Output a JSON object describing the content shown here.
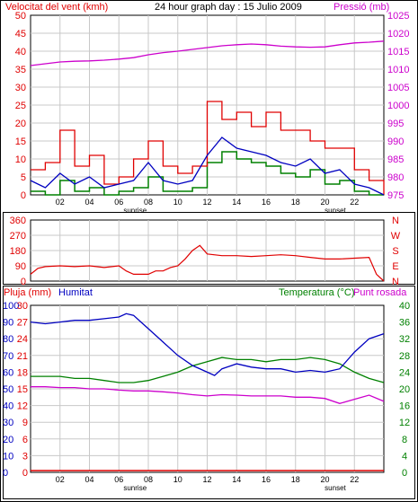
{
  "chart_data": [
    {
      "type": "line",
      "title": "24 hour graph day : 15 Julio 2009",
      "ylabel": "Velocitat del vent (kmh)",
      "y2label": "Pressió (mb)",
      "ylim": [
        0,
        50
      ],
      "y2lim": [
        975,
        1025
      ],
      "yticks": [
        "0",
        "5",
        "10",
        "15",
        "20",
        "25",
        "30",
        "35",
        "40",
        "45",
        "50"
      ],
      "y2ticks": [
        "975",
        "980",
        "985",
        "990",
        "995",
        "1000",
        "1005",
        "1010",
        "1015",
        "1020",
        "1025"
      ],
      "xticks": [
        "02",
        "04",
        "06",
        "08",
        "10",
        "12",
        "14",
        "16",
        "18",
        "20",
        "22"
      ],
      "x_range": [
        0,
        24
      ],
      "sunrise": 7.1,
      "sunset": 20.7,
      "sunrise_label": "sunrise",
      "sunset_label": "sunset",
      "grid": true,
      "colors": {
        "gust": "#e00000",
        "wind": "#0000c0",
        "avg": "#008000",
        "pressure": "#cc00cc",
        "axis_left": "#e00000",
        "axis_right": "#cc00cc",
        "grid": "#c0c0c0"
      },
      "series": [
        {
          "key": "pressure",
          "axis": "right",
          "x": [
            0,
            1,
            2,
            3,
            4,
            5,
            6,
            7,
            8,
            9,
            10,
            11,
            12,
            13,
            14,
            15,
            16,
            17,
            18,
            19,
            20,
            21,
            22,
            23,
            24
          ],
          "values": [
            1011,
            1011.5,
            1012,
            1012.2,
            1012.3,
            1012.5,
            1012.8,
            1013.2,
            1014,
            1014.6,
            1015,
            1015.5,
            1016,
            1016.5,
            1016.8,
            1017,
            1016.8,
            1016.4,
            1016.2,
            1016.1,
            1016.2,
            1016.8,
            1017.3,
            1017.5,
            1017.8
          ]
        },
        {
          "key": "gust",
          "axis": "left",
          "x": [
            0,
            1,
            2,
            3,
            4,
            5,
            6,
            7,
            8,
            9,
            10,
            11,
            12,
            13,
            14,
            15,
            16,
            17,
            18,
            19,
            20,
            21,
            22,
            23,
            24
          ],
          "values": [
            7,
            9,
            18,
            8,
            11,
            3,
            5,
            10,
            15,
            8,
            6,
            8,
            26,
            21,
            23,
            19,
            23,
            18,
            18,
            15,
            13,
            13,
            7,
            4,
            0
          ]
        },
        {
          "key": "wind",
          "axis": "left",
          "x": [
            0,
            1,
            2,
            3,
            4,
            5,
            6,
            7,
            8,
            9,
            10,
            11,
            12,
            13,
            14,
            15,
            16,
            17,
            18,
            19,
            20,
            21,
            22,
            23,
            24
          ],
          "values": [
            4,
            2,
            6,
            3,
            5,
            2,
            3,
            4,
            9,
            4,
            3,
            4,
            11,
            16,
            13,
            12,
            11,
            9,
            8,
            10,
            6,
            7,
            3,
            2,
            0
          ]
        },
        {
          "key": "avg",
          "axis": "left",
          "x": [
            0,
            1,
            2,
            3,
            4,
            5,
            6,
            7,
            8,
            9,
            10,
            11,
            12,
            13,
            14,
            15,
            16,
            17,
            18,
            19,
            20,
            21,
            22,
            23,
            24
          ],
          "values": [
            1,
            0,
            4,
            1,
            2,
            0,
            1,
            2,
            5,
            1,
            1,
            2,
            9,
            12,
            10,
            9,
            8,
            6,
            5,
            7,
            3,
            4,
            1,
            0,
            0
          ]
        }
      ]
    },
    {
      "type": "line",
      "ylabel_right": [
        "N",
        "W",
        "S",
        "E",
        "N"
      ],
      "ylim": [
        0,
        360
      ],
      "yticks": [
        "0",
        "90",
        "180",
        "270",
        "360"
      ],
      "xticks": [
        "02",
        "04",
        "06",
        "08",
        "10",
        "12",
        "14",
        "16",
        "18",
        "20",
        "22"
      ],
      "x_range": [
        0,
        24
      ],
      "grid": true,
      "colors": {
        "direction": "#e00000",
        "axis_left": "#e00000",
        "axis_right": "#e00000"
      },
      "series": [
        {
          "key": "direction",
          "x": [
            0,
            0.5,
            1,
            2,
            3,
            4,
            5,
            6,
            6.5,
            7,
            7.5,
            8,
            8.5,
            9,
            9.5,
            10,
            10.5,
            11,
            11.5,
            12,
            13,
            14,
            15,
            16,
            17,
            18,
            19,
            20,
            21,
            22,
            23,
            23.5,
            24
          ],
          "values": [
            40,
            75,
            85,
            90,
            85,
            90,
            80,
            90,
            60,
            40,
            40,
            40,
            60,
            60,
            80,
            90,
            130,
            180,
            210,
            160,
            150,
            150,
            145,
            150,
            155,
            150,
            140,
            130,
            130,
            135,
            140,
            40,
            0
          ]
        }
      ]
    },
    {
      "type": "line",
      "legend": [
        "Pluja (mm)",
        "Humitat",
        "Temperatura (°C)",
        "Punt rosada"
      ],
      "left_ticks_rain": [
        "0",
        "3",
        "6",
        "9",
        "12",
        "15",
        "18",
        "21",
        "24",
        "27",
        "30"
      ],
      "left_ticks_hum": [
        "0",
        "10",
        "20",
        "30",
        "40",
        "50",
        "60",
        "70",
        "80",
        "90",
        "100"
      ],
      "right_ticks": [
        "0",
        "4",
        "8",
        "12",
        "16",
        "20",
        "24",
        "28",
        "32",
        "36",
        "40"
      ],
      "rain_lim": [
        0,
        30
      ],
      "hum_lim": [
        0,
        100
      ],
      "temp_lim": [
        0,
        40
      ],
      "xticks": [
        "02",
        "04",
        "06",
        "08",
        "10",
        "12",
        "14",
        "16",
        "18",
        "20",
        "22"
      ],
      "x_range": [
        0,
        24
      ],
      "sunrise": 7.1,
      "sunset": 20.7,
      "sunrise_label": "sunrise",
      "sunset_label": "sunset",
      "grid": true,
      "colors": {
        "rain": "#e00000",
        "humidity": "#0000c0",
        "temperature": "#008000",
        "dewpoint": "#cc00cc",
        "axis_rain": "#e00000",
        "axis_hum": "#0000c0",
        "axis_right": "#008000"
      },
      "series": [
        {
          "key": "humidity",
          "axis": "hum",
          "x": [
            0,
            1,
            2,
            3,
            4,
            5,
            6,
            6.5,
            7,
            7.5,
            8,
            9,
            10,
            11,
            12,
            12.5,
            13,
            14,
            15,
            16,
            17,
            18,
            19,
            20,
            21,
            22,
            23,
            24
          ],
          "values": [
            90,
            89,
            90,
            91,
            91,
            92,
            93,
            95,
            94,
            90,
            86,
            78,
            70,
            64,
            60,
            58,
            62,
            65,
            63,
            62,
            62,
            60,
            61,
            60,
            62,
            72,
            80,
            83
          ]
        },
        {
          "key": "temperature",
          "axis": "temp",
          "x": [
            0,
            1,
            2,
            3,
            4,
            5,
            6,
            7,
            8,
            9,
            10,
            11,
            12,
            13,
            14,
            15,
            16,
            17,
            18,
            19,
            20,
            21,
            22,
            23,
            24
          ],
          "values": [
            23,
            23,
            23,
            22.5,
            22.5,
            22,
            21.5,
            21.5,
            22,
            23,
            24,
            25.5,
            26.5,
            27.5,
            27,
            27,
            26.5,
            27,
            27,
            27.5,
            27,
            26,
            24,
            22.5,
            21.5
          ]
        },
        {
          "key": "dewpoint",
          "axis": "temp",
          "x": [
            0,
            1,
            2,
            3,
            4,
            5,
            6,
            7,
            8,
            9,
            10,
            11,
            12,
            13,
            14,
            15,
            16,
            17,
            18,
            19,
            20,
            21,
            22,
            23,
            24
          ],
          "values": [
            20.5,
            20.5,
            20.3,
            20.3,
            20,
            20,
            19.7,
            19.5,
            19.5,
            19.3,
            19,
            18.6,
            18.3,
            18.6,
            18.5,
            18.3,
            18.3,
            18.3,
            18,
            18,
            17.7,
            16.5,
            17.5,
            18.5,
            17
          ]
        },
        {
          "key": "rain",
          "axis": "rain",
          "x": [
            0,
            24
          ],
          "values": [
            0,
            0
          ]
        }
      ]
    }
  ]
}
